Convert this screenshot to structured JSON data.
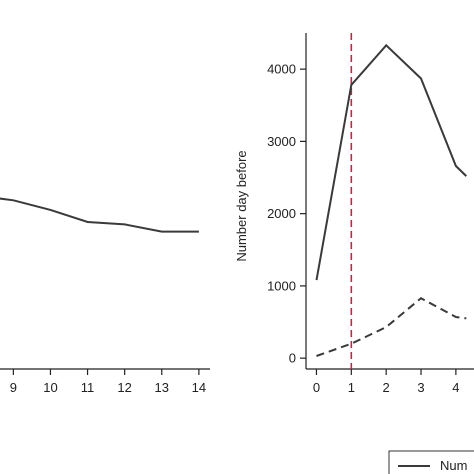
{
  "colors": {
    "line": "#3a3a3a",
    "axis": "#222222",
    "marker_line": "#c8244a",
    "background": "#ffffff"
  },
  "chart_data": [
    {
      "type": "line",
      "panel": "left",
      "x_ticks": [
        "9",
        "10",
        "11",
        "12",
        "13",
        "14"
      ],
      "xlim": [
        8.64,
        14.3
      ],
      "series": [
        {
          "style": "solid",
          "x": [
            8,
            9,
            10,
            11,
            12,
            13,
            14
          ],
          "y": [
            0.72,
            0.7,
            0.66,
            0.61,
            0.6,
            0.57,
            0.57
          ]
        }
      ]
    },
    {
      "type": "line",
      "panel": "right",
      "ylabel": "Number day before",
      "y_ticks": [
        "0",
        "1000",
        "2000",
        "3000",
        "4000"
      ],
      "x_ticks": [
        "0",
        "1",
        "2",
        "3",
        "4"
      ],
      "ylim": [
        -150,
        4500
      ],
      "xlim": [
        -0.3,
        4.52
      ],
      "vline_x": 1,
      "series": [
        {
          "style": "solid",
          "x": [
            0,
            1,
            2,
            3,
            4,
            4.3
          ],
          "y": [
            1080,
            3780,
            4330,
            3870,
            2660,
            2520
          ]
        },
        {
          "style": "dashed",
          "x": [
            0,
            1,
            2,
            3,
            4,
            4.3
          ],
          "y": [
            30,
            200,
            430,
            830,
            570,
            550
          ]
        }
      ],
      "legend": {
        "placement": "bottom-right",
        "visible_text": "Num"
      }
    }
  ]
}
